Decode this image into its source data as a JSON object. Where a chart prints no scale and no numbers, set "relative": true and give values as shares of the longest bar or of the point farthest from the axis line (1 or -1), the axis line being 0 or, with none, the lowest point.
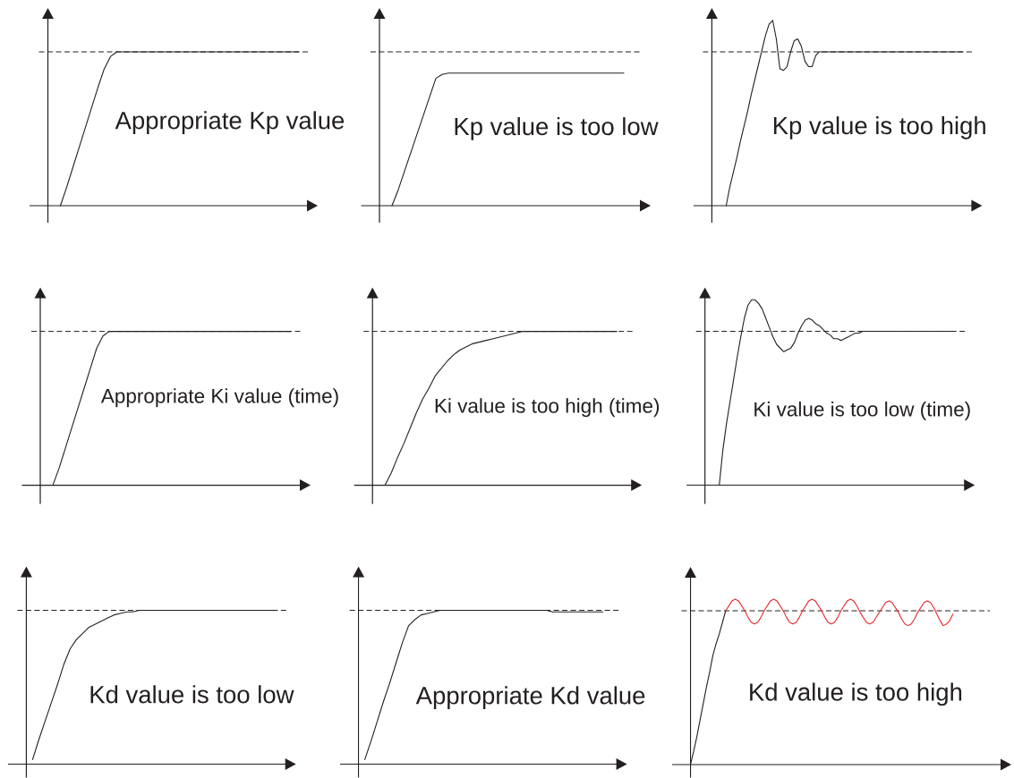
{
  "chart_data": [
    {
      "type": "line",
      "relative": true,
      "categories": [
        null,
        null,
        null,
        null,
        null,
        null,
        null,
        null,
        null,
        null,
        null,
        null,
        null,
        null,
        null,
        null,
        null,
        null,
        null,
        null,
        null,
        null,
        null,
        null,
        null,
        null,
        null,
        null,
        null,
        null,
        null,
        null,
        null,
        null,
        null,
        null,
        null,
        null,
        null,
        null,
        null
      ],
      "series": [
        {
          "color": "#231f20",
          "values": [
            null,
            null,
            0,
            0.12,
            0.25,
            0.38,
            0.51,
            0.64,
            0.77,
            0.89,
            0.97,
            1,
            1,
            1,
            1,
            1,
            1,
            1,
            1,
            1,
            1,
            1,
            1,
            1,
            1,
            1,
            1,
            1,
            1,
            1,
            1,
            1,
            1,
            1,
            1,
            1,
            1,
            1,
            1,
            1,
            1
          ]
        }
      ],
      "ref_lines": [
        {
          "axis": "y",
          "value": 1,
          "color": "#231f20",
          "line_style": "dashed"
        }
      ],
      "annotations": [
        "Appropriate Kp value"
      ]
    },
    {
      "type": "line",
      "relative": true,
      "categories": [
        null,
        null,
        null,
        null,
        null,
        null,
        null,
        null,
        null,
        null,
        null,
        null,
        null,
        null,
        null,
        null,
        null,
        null,
        null,
        null,
        null,
        null,
        null,
        null,
        null,
        null,
        null,
        null,
        null,
        null,
        null,
        null,
        null,
        null,
        null,
        null,
        null,
        null,
        null,
        null
      ],
      "series": [
        {
          "color": "#231f20",
          "values": [
            null,
            null,
            0,
            0.12,
            0.26,
            0.4,
            0.54,
            0.68,
            0.82,
            0.96,
            0.99,
            1,
            1,
            1,
            1,
            1,
            1,
            1,
            1,
            1,
            1,
            1,
            1,
            1,
            1,
            1,
            1,
            1,
            1,
            1,
            1,
            1,
            1,
            1,
            1,
            1,
            1,
            1,
            1,
            1
          ]
        }
      ],
      "ref_lines": [
        {
          "axis": "y",
          "value": 1.16,
          "color": "#231f20",
          "line_style": "dashed"
        }
      ],
      "annotations": [
        "Kp value is too low"
      ]
    },
    {
      "type": "line",
      "relative": true,
      "categories": [
        null,
        null,
        null,
        null,
        null,
        null,
        null,
        null,
        null,
        null,
        null,
        null,
        null,
        null,
        null,
        null,
        null,
        null,
        null,
        null,
        null,
        null,
        null,
        null,
        null,
        null,
        null,
        null,
        null,
        null,
        null,
        null,
        null,
        null,
        null,
        null,
        null,
        null,
        null,
        null,
        null,
        null,
        null,
        null,
        null,
        null,
        null,
        null,
        null,
        null,
        null,
        null,
        null,
        null,
        null,
        null,
        null,
        null,
        null,
        null,
        null,
        null,
        null,
        null,
        null,
        null,
        null,
        null,
        null,
        null,
        null
      ],
      "series": [
        {
          "color": "#231f20",
          "values": [
            null,
            null,
            null,
            null,
            0,
            0.1,
            0.18,
            0.26,
            0.35,
            0.43,
            0.51,
            0.6,
            0.68,
            0.76,
            0.84,
            0.92,
            0.98,
            1,
            0.9,
            0.74,
            0.73,
            0.75,
            0.83,
            0.89,
            0.9,
            0.86,
            0.78,
            0.75,
            0.75,
            0.81,
            0.83,
            0.83,
            0.83,
            0.83,
            0.83,
            0.83,
            0.83,
            0.83,
            0.83,
            0.83,
            0.83,
            0.83,
            0.83,
            0.83,
            0.83,
            0.83,
            0.83,
            0.83,
            0.83,
            0.83,
            0.83,
            0.83,
            0.83,
            0.83,
            0.83,
            0.83,
            0.83,
            0.83,
            0.83,
            0.83,
            0.83,
            0.83,
            0.83,
            0.83,
            0.83,
            0.83,
            0.83,
            0.83,
            0.83,
            0.83,
            0.83
          ]
        }
      ],
      "ref_lines": [
        {
          "axis": "y",
          "value": 0.83,
          "color": "#231f20",
          "line_style": "dashed"
        }
      ],
      "annotations": [
        "Kp value is too high"
      ]
    },
    {
      "type": "line",
      "relative": true,
      "categories": [
        null,
        null,
        null,
        null,
        null,
        null,
        null,
        null,
        null,
        null,
        null,
        null,
        null,
        null,
        null,
        null,
        null,
        null,
        null,
        null,
        null,
        null,
        null,
        null,
        null,
        null,
        null,
        null,
        null,
        null,
        null,
        null,
        null,
        null,
        null,
        null,
        null,
        null,
        null,
        null,
        null
      ],
      "series": [
        {
          "color": "#231f20",
          "values": [
            null,
            null,
            0,
            0.11,
            0.24,
            0.37,
            0.5,
            0.63,
            0.76,
            0.89,
            0.97,
            1,
            1,
            1,
            1,
            1,
            1,
            1,
            1,
            1,
            1,
            1,
            1,
            1,
            1,
            1,
            1,
            1,
            1,
            1,
            1,
            1,
            1,
            1,
            1,
            1,
            1,
            1,
            1,
            1,
            1
          ]
        }
      ],
      "ref_lines": [
        {
          "axis": "y",
          "value": 1,
          "color": "#231f20",
          "line_style": "dashed"
        }
      ],
      "annotations": [
        "Appropriate Ki value (time)"
      ]
    },
    {
      "type": "line",
      "relative": true,
      "categories": [
        null,
        null,
        null,
        null,
        null,
        null,
        null,
        null,
        null,
        null,
        null,
        null,
        null,
        null,
        null,
        null,
        null,
        null,
        null,
        null,
        null,
        null,
        null,
        null,
        null,
        null,
        null,
        null,
        null,
        null,
        null,
        null,
        null,
        null,
        null,
        null,
        null,
        null,
        null,
        null
      ],
      "series": [
        {
          "color": "#231f20",
          "values": [
            null,
            null,
            0,
            0.08,
            0.18,
            0.27,
            0.37,
            0.47,
            0.56,
            0.63,
            0.71,
            0.76,
            0.81,
            0.85,
            0.88,
            0.9,
            0.92,
            0.93,
            0.94,
            0.95,
            0.96,
            0.97,
            0.98,
            0.99,
            1,
            1,
            1,
            1,
            1,
            1,
            1,
            1,
            1,
            1,
            1,
            1,
            1,
            1,
            1,
            1
          ]
        }
      ],
      "ref_lines": [
        {
          "axis": "y",
          "value": 1,
          "color": "#231f20",
          "line_style": "dashed"
        }
      ],
      "annotations": [
        "Ki value is too high (time)"
      ]
    },
    {
      "type": "line",
      "relative": true,
      "categories": [
        null,
        null,
        null,
        null,
        null,
        null,
        null,
        null,
        null,
        null,
        null,
        null,
        null,
        null,
        null,
        null,
        null,
        null,
        null,
        null,
        null,
        null,
        null,
        null,
        null,
        null,
        null,
        null,
        null,
        null,
        null,
        null,
        null,
        null,
        null,
        null,
        null,
        null,
        null,
        null,
        null,
        null,
        null,
        null,
        null,
        null,
        null,
        null,
        null,
        null,
        null,
        null,
        null,
        null,
        null,
        null,
        null,
        null,
        null,
        null,
        null,
        null,
        null,
        null,
        null,
        null,
        null,
        null,
        null,
        null,
        null
      ],
      "series": [
        {
          "color": "#231f20",
          "values": [
            null,
            null,
            null,
            null,
            0,
            0.19,
            0.33,
            0.45,
            0.57,
            0.69,
            0.8,
            0.9,
            0.97,
            1,
            1,
            0.98,
            0.95,
            0.9,
            0.85,
            0.8,
            0.76,
            0.74,
            0.72,
            0.73,
            0.74,
            0.77,
            0.82,
            0.86,
            0.89,
            0.9,
            0.89,
            0.87,
            0.86,
            0.84,
            0.82,
            0.81,
            0.79,
            0.79,
            0.78,
            0.79,
            0.8,
            0.81,
            0.82,
            0.82,
            0.83,
            0.83,
            0.83,
            0.83,
            0.83,
            0.83,
            0.83,
            0.83,
            0.83,
            0.83,
            0.83,
            0.83,
            0.83,
            0.83,
            0.83,
            0.83,
            0.83,
            0.83,
            0.83,
            0.83,
            0.83,
            0.83,
            0.83,
            0.83,
            0.83,
            0.83,
            0.83
          ]
        }
      ],
      "ref_lines": [
        {
          "axis": "y",
          "value": 0.83,
          "color": "#231f20",
          "line_style": "dashed"
        }
      ],
      "annotations": [
        "Ki value is too low (time)"
      ]
    },
    {
      "type": "line",
      "relative": true,
      "categories": [
        null,
        null,
        null,
        null,
        null,
        null,
        null,
        null,
        null,
        null,
        null,
        null,
        null,
        null,
        null,
        null,
        null,
        null,
        null,
        null,
        null,
        null,
        null,
        null,
        null,
        null,
        null,
        null,
        null,
        null,
        null,
        null,
        null,
        null,
        null,
        null,
        null,
        null,
        null,
        null,
        null
      ],
      "series": [
        {
          "color": "#231f20",
          "values": [
            null,
            0.03,
            0.16,
            0.28,
            0.4,
            0.52,
            0.65,
            0.75,
            0.81,
            0.85,
            0.89,
            0.91,
            0.93,
            0.95,
            0.97,
            0.98,
            0.99,
            0.99,
            1,
            1,
            1,
            1,
            1,
            1,
            1,
            1,
            1,
            1,
            1,
            1,
            1,
            1,
            1,
            1,
            1,
            1,
            1,
            1,
            1,
            1,
            1
          ]
        }
      ],
      "ref_lines": [
        {
          "axis": "y",
          "value": 1,
          "color": "#231f20",
          "line_style": "dashed"
        }
      ],
      "annotations": [
        "Kd value is too low"
      ]
    },
    {
      "type": "line",
      "relative": true,
      "categories": [
        null,
        null,
        null,
        null,
        null,
        null,
        null,
        null,
        null,
        null,
        null,
        null,
        null,
        null,
        null,
        null,
        null,
        null,
        null,
        null,
        null,
        null,
        null,
        null,
        null,
        null,
        null,
        null,
        null,
        null,
        null,
        null,
        null,
        null,
        null,
        null,
        null,
        null,
        null,
        null
      ],
      "series": [
        {
          "color": "#231f20",
          "values": [
            null,
            0.03,
            0.15,
            0.28,
            0.41,
            0.53,
            0.66,
            0.79,
            0.9,
            0.94,
            0.97,
            0.98,
            0.99,
            1,
            1,
            1,
            1,
            1,
            1,
            1,
            1,
            1,
            1,
            1,
            1,
            1,
            1,
            1,
            1,
            1,
            1,
            0.99,
            0.99,
            0.99,
            0.99,
            0.99,
            0.99,
            0.99,
            0.99,
            0.99
          ]
        }
      ],
      "ref_lines": [
        {
          "axis": "y",
          "value": 1,
          "color": "#231f20",
          "line_style": "dashed"
        }
      ],
      "annotations": [
        "Appropriate Kd value"
      ]
    },
    {
      "type": "line",
      "relative": true,
      "categories": [
        null,
        null,
        null,
        null,
        null,
        null,
        null,
        null,
        null,
        null,
        null,
        null,
        null,
        null,
        null,
        null,
        null,
        null,
        null,
        null,
        null,
        null,
        null,
        null,
        null,
        null,
        null,
        null,
        null,
        null,
        null,
        null,
        null,
        null,
        null,
        null,
        null,
        null,
        null,
        null,
        null,
        null,
        null,
        null,
        null,
        null,
        null,
        null,
        null,
        null,
        null,
        null,
        null,
        null,
        null,
        null,
        null,
        null,
        null,
        null,
        null,
        null,
        null,
        null,
        null,
        null,
        null,
        null,
        null,
        null,
        null,
        null,
        null,
        null,
        null,
        null,
        null,
        null,
        null,
        null,
        null,
        null,
        null
      ],
      "series": [
        {
          "color": "#231f20",
          "values": [
            0,
            0.08,
            0.17,
            0.27,
            0.37,
            0.47,
            0.56,
            0.66,
            0.73,
            0.79,
            0.86,
            0.93,
            null,
            null,
            null,
            null,
            null,
            null,
            null,
            null,
            null,
            null,
            null,
            null,
            null,
            null,
            null,
            null,
            null,
            null,
            null,
            null,
            null,
            null,
            null,
            null,
            null,
            null,
            null,
            null,
            null,
            null,
            null,
            null,
            null,
            null,
            null,
            null,
            null,
            null,
            null,
            null,
            null,
            null,
            null,
            null,
            null,
            null,
            null,
            null,
            null,
            null,
            null,
            null,
            null,
            null,
            null,
            null,
            null,
            null,
            null,
            null,
            null,
            null,
            null,
            null,
            null,
            null,
            null,
            null,
            null,
            null,
            null
          ]
        },
        {
          "color": "#e8262d",
          "values": [
            null,
            null,
            null,
            null,
            null,
            null,
            null,
            null,
            null,
            null,
            null,
            0.93,
            0.96,
            0.99,
            1,
            0.99,
            0.96,
            0.93,
            0.89,
            0.86,
            0.85,
            0.86,
            0.89,
            0.93,
            0.96,
            0.99,
            1,
            0.99,
            0.96,
            0.93,
            0.89,
            0.86,
            0.85,
            0.86,
            0.89,
            0.93,
            0.96,
            0.99,
            1,
            0.99,
            0.96,
            0.93,
            0.89,
            0.86,
            0.85,
            0.86,
            0.89,
            0.93,
            0.96,
            0.99,
            1,
            0.99,
            0.96,
            0.92,
            0.89,
            0.86,
            0.85,
            0.86,
            0.89,
            0.92,
            0.95,
            0.98,
            0.99,
            0.98,
            0.95,
            0.92,
            0.88,
            0.85,
            0.84,
            0.85,
            0.88,
            0.92,
            0.95,
            0.98,
            0.99,
            0.98,
            0.95,
            0.91,
            0.87,
            0.84,
            0.85,
            0.87,
            0.91
          ]
        }
      ],
      "ref_lines": [
        {
          "axis": "y",
          "value": 0.93,
          "color": "#231f20",
          "line_style": "dashed"
        }
      ],
      "annotations": [
        "Kd value is too high"
      ]
    }
  ]
}
